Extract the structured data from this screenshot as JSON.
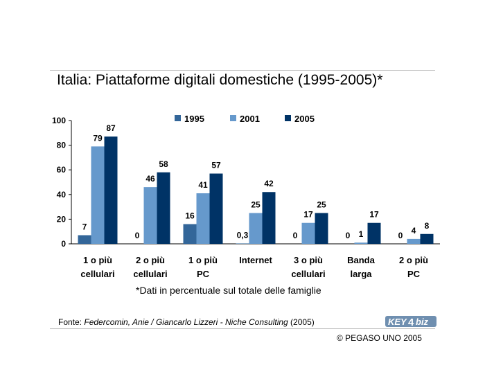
{
  "chart_data": {
    "type": "bar",
    "title": "Italia: Piattaforme digitali domestiche (1995-2005)*",
    "categories": [
      [
        "1 o più",
        "cellulari"
      ],
      [
        "2 o più",
        "cellulari"
      ],
      [
        "1 o più",
        "PC"
      ],
      [
        "Internet"
      ],
      [
        "3 o più",
        "cellulari"
      ],
      [
        "Banda",
        "larga"
      ],
      [
        "2 o più",
        "PC"
      ]
    ],
    "series": [
      {
        "name": "1995",
        "color": "#336699",
        "values": [
          7,
          0,
          16,
          0.3,
          0,
          0,
          0
        ],
        "labels": [
          "7",
          "0",
          "16",
          "0,3",
          "0",
          "0",
          "0"
        ]
      },
      {
        "name": "2001",
        "color": "#6699cc",
        "values": [
          79,
          46,
          41,
          25,
          17,
          1,
          4
        ],
        "labels": [
          "79",
          "46",
          "41",
          "25",
          "17",
          "1",
          "4"
        ]
      },
      {
        "name": "2005",
        "color": "#003366",
        "values": [
          87,
          58,
          57,
          42,
          25,
          17,
          8
        ],
        "labels": [
          "87",
          "58",
          "57",
          "42",
          "25",
          "17",
          "8"
        ]
      }
    ],
    "yticks": [
      "0",
      "20",
      "40",
      "60",
      "80",
      "100"
    ],
    "ylim": [
      0,
      100
    ],
    "legend": "top-center",
    "grid": false
  },
  "footnote": "*Dati in percentuale sul totale delle famiglie",
  "source": {
    "prefix": "Fonte: ",
    "italic": "Federcomin, Anie / Giancarlo Lizzeri - Niche Consulting",
    "suffix": " (2005)"
  },
  "copyright": "© PEGASO UNO 2005",
  "logo": {
    "part1": "KEY",
    "part2": "4",
    "part3": "biz"
  }
}
